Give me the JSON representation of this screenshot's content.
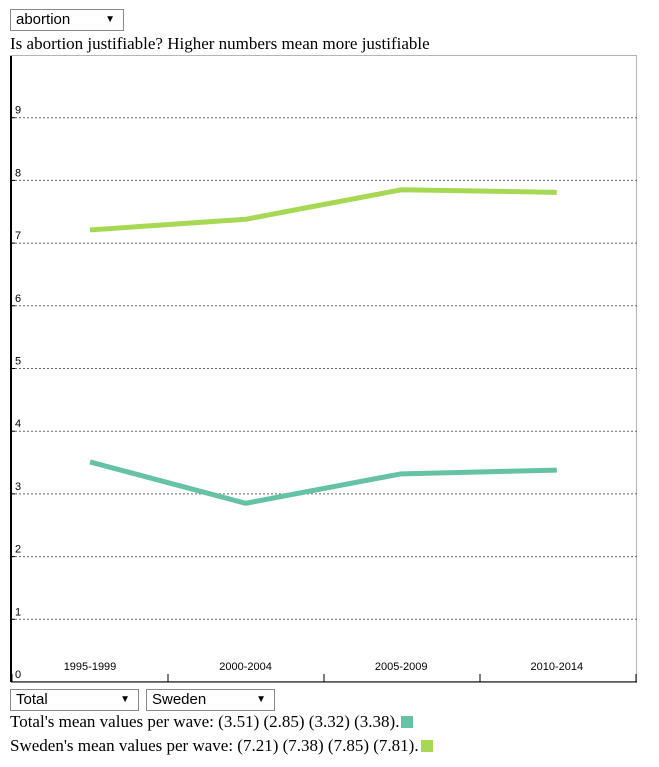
{
  "controls": {
    "topic": "abortion",
    "group": "Total",
    "country": "Sweden"
  },
  "question": "Is abortion justifiable? Higher numbers mean more justifiable",
  "chart_data": {
    "type": "line",
    "categories": [
      "1995-1999",
      "2000-2004",
      "2005-2009",
      "2010-2014"
    ],
    "y_ticks": [
      "0",
      "1",
      "2",
      "3",
      "4",
      "5",
      "6",
      "7",
      "8",
      "9"
    ],
    "ylim": [
      0,
      10
    ],
    "grid": true,
    "series": [
      {
        "name": "Total",
        "values": [
          3.51,
          2.85,
          3.32,
          3.38
        ],
        "color": "#66c2a5"
      },
      {
        "name": "Sweden",
        "values": [
          7.21,
          7.38,
          7.85,
          7.81
        ],
        "color": "#a6d854"
      }
    ]
  },
  "legend": {
    "total_text": "Total's mean values per wave: (3.51) (2.85) (3.32) (3.38).",
    "country_text": "Sweden's mean values per wave: (7.21) (7.38) (7.85) (7.81)."
  }
}
